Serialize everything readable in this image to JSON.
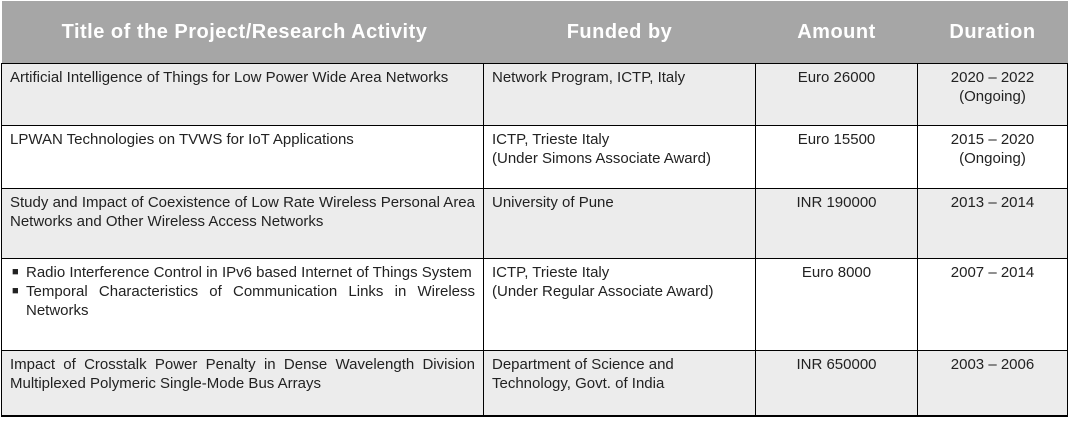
{
  "table": {
    "headers": {
      "title": "Title of the Project/Research Activity",
      "funded_by": "Funded by",
      "amount": "Amount",
      "duration": "Duration"
    },
    "rows": [
      {
        "title": "Artificial Intelligence of Things for Low Power Wide Area Networks",
        "funded_by": [
          "Network Program, ICTP, Italy"
        ],
        "amount": "Euro 26000",
        "duration": [
          "2020 – 2022",
          "(Ongoing)"
        ]
      },
      {
        "title": "LPWAN Technologies on TVWS for IoT Applications",
        "funded_by": [
          "ICTP, Trieste Italy",
          "(Under Simons Associate Award)"
        ],
        "amount": "Euro 15500",
        "duration": [
          "2015 – 2020",
          "(Ongoing)"
        ]
      },
      {
        "title": "Study and Impact of Coexistence of Low Rate Wireless Personal Area Networks and Other Wireless Access Networks",
        "funded_by": [
          "University of Pune"
        ],
        "amount": "INR 190000",
        "duration": [
          "2013 – 2014"
        ]
      },
      {
        "title_items": [
          "Radio Interference Control in IPv6 based Internet of Things System",
          "Temporal Characteristics of Communication Links in Wireless Networks"
        ],
        "bullet_symbol": "■",
        "funded_by": [
          "ICTP, Trieste Italy",
          "(Under Regular Associate Award)"
        ],
        "amount": "Euro 8000",
        "duration": [
          "2007 – 2014"
        ]
      },
      {
        "title": "Impact of Crosstalk Power Penalty in Dense Wavelength Division Multiplexed Polymeric Single-Mode Bus Arrays",
        "funded_by": [
          "Department of Science and",
          "Technology, Govt. of India"
        ],
        "amount": "INR 650000",
        "duration": [
          "2003 – 2006"
        ]
      }
    ]
  }
}
